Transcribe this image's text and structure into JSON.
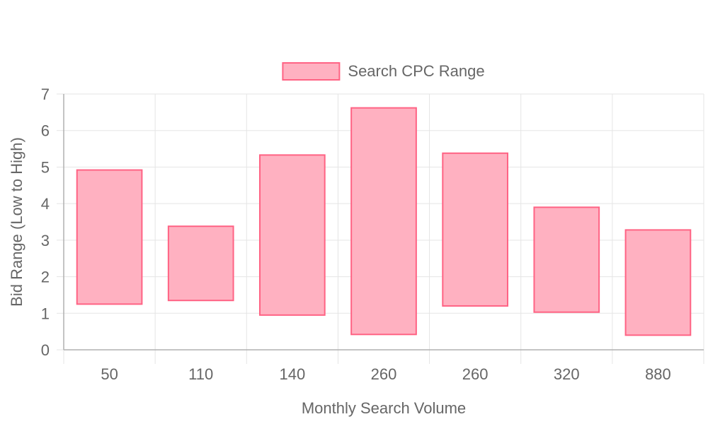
{
  "chart_data": {
    "type": "bar",
    "title": "",
    "legend": {
      "position": "top",
      "label": "Search CPC Range"
    },
    "categories": [
      "50",
      "110",
      "140",
      "260",
      "260",
      "320",
      "880"
    ],
    "series": [
      {
        "name": "Search CPC Range",
        "ranges": [
          [
            1.25,
            4.92
          ],
          [
            1.35,
            3.38
          ],
          [
            0.95,
            5.33
          ],
          [
            0.42,
            6.62
          ],
          [
            1.2,
            5.38
          ],
          [
            1.03,
            3.9
          ],
          [
            0.4,
            3.28
          ]
        ]
      }
    ],
    "xlabel": "Monthly Search Volume",
    "ylabel": "Bid Range (Low to High)",
    "ylim": [
      0,
      7
    ],
    "yticks": [
      "0",
      "1",
      "2",
      "3",
      "4",
      "5",
      "6",
      "7"
    ],
    "grid": true,
    "colors": {
      "fill": "#ffb1c1",
      "stroke": "#ff6384",
      "grid": "#e5e5e5",
      "axis": "#b0b0b0",
      "text": "#666666"
    }
  }
}
